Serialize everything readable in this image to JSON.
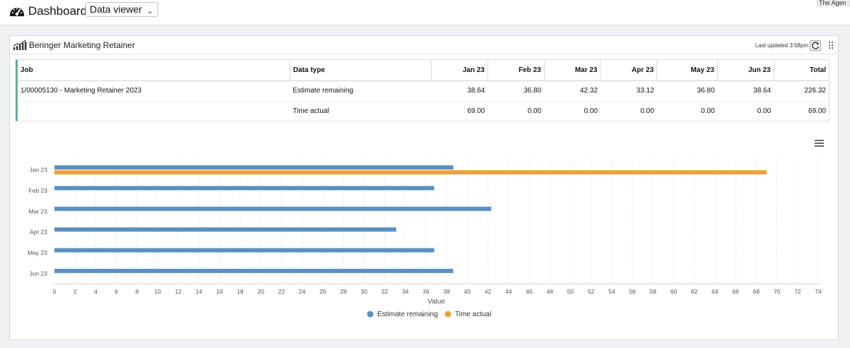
{
  "topbar": {
    "title": "Dashboard",
    "viewer": "Data viewer",
    "corner": "The Agen"
  },
  "panel": {
    "title": "Beringer Marketing Retainer",
    "updated": "Last updated 3:58pm"
  },
  "table": {
    "headers": [
      "Job",
      "Data type",
      "Jan 23",
      "Feb 23",
      "Mar 23",
      "Apr 23",
      "May 23",
      "Jun 23",
      "Total"
    ],
    "rows": [
      [
        "1/00005130 - Marketing Retainer 2023",
        "Estimate remaining",
        "38.64",
        "36.80",
        "42.32",
        "33.12",
        "36.80",
        "38.64",
        "226.32"
      ],
      [
        "",
        "Time actual",
        "69.00",
        "0.00",
        "0.00",
        "0.00",
        "0.00",
        "0.00",
        "69.00"
      ]
    ]
  },
  "chart_data": {
    "type": "bar",
    "orientation": "horizontal",
    "categories": [
      "Jan 23",
      "Feb 23",
      "Mar 23",
      "Apr 23",
      "May 23",
      "Jun 23"
    ],
    "series": [
      {
        "name": "Estimate remaining",
        "color": "#5b8fc2",
        "values": [
          38.64,
          36.8,
          42.32,
          33.12,
          36.8,
          38.64
        ]
      },
      {
        "name": "Time actual",
        "color": "#eda23a",
        "values": [
          69,
          0,
          0,
          0,
          0,
          0
        ]
      }
    ],
    "xlabel": "Value",
    "xlim": [
      0,
      74
    ],
    "xticks": [
      0,
      2,
      4,
      6,
      8,
      10,
      12,
      14,
      16,
      18,
      20,
      22,
      24,
      26,
      28,
      30,
      32,
      34,
      36,
      38,
      40,
      42,
      44,
      46,
      48,
      50,
      52,
      54,
      56,
      58,
      60,
      62,
      64,
      66,
      68,
      70,
      72,
      74
    ],
    "grid": "vertical dotted",
    "legend": "bottom-center"
  }
}
